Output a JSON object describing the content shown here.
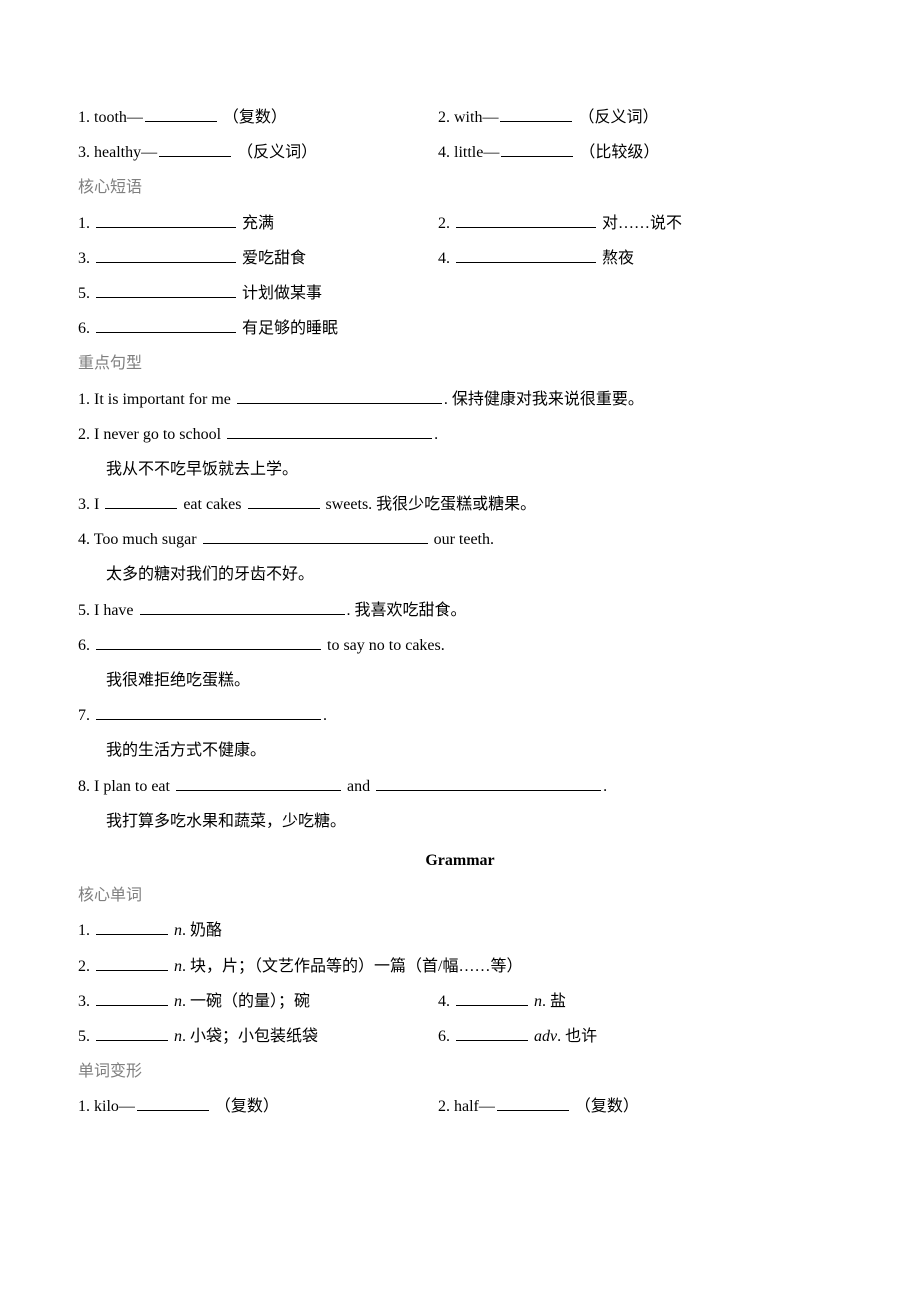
{
  "wordForms1": {
    "i1": {
      "num": "1.",
      "word": "tooth—",
      "note": "（复数）"
    },
    "i2": {
      "num": "2.",
      "word": "with—",
      "note": "（反义词）"
    },
    "i3": {
      "num": "3.",
      "word": "healthy—",
      "note": "（反义词）"
    },
    "i4": {
      "num": "4.",
      "word": "little—",
      "note": "（比较级）"
    }
  },
  "sectionPhrases": "核心短语",
  "phrases": {
    "p1": {
      "num": "1.",
      "cn": "充满"
    },
    "p2": {
      "num": "2.",
      "cn": "对……说不"
    },
    "p3": {
      "num": "3.",
      "cn": "爱吃甜食"
    },
    "p4": {
      "num": "4.",
      "cn": "熬夜"
    },
    "p5": {
      "num": "5.",
      "cn": "计划做某事"
    },
    "p6": {
      "num": "6.",
      "cn": "有足够的睡眠"
    }
  },
  "sectionSentences": "重点句型",
  "sentences": {
    "s1": {
      "num": "1.",
      "pre": "It is important for me",
      "post": ".",
      "cn": "保持健康对我来说很重要。"
    },
    "s2": {
      "num": "2.",
      "pre": "I never go to school",
      "post": ".",
      "cn": "我从不不吃早饭就去上学。"
    },
    "s3": {
      "num": "3.",
      "preA": "I",
      "mid": "eat cakes",
      "postA": "sweets.",
      "cn": "我很少吃蛋糕或糖果。"
    },
    "s4": {
      "num": "4.",
      "pre": "Too much sugar",
      "post": "our teeth.",
      "cn": "太多的糖对我们的牙齿不好。"
    },
    "s5": {
      "num": "5.",
      "pre": "I have",
      "post": ".",
      "cn": "我喜欢吃甜食。"
    },
    "s6": {
      "num": "6.",
      "post": "to say no to cakes.",
      "cn": "我很难拒绝吃蛋糕。"
    },
    "s7": {
      "num": "7.",
      "post": ".",
      "cn": "我的生活方式不健康。"
    },
    "s8": {
      "num": "8.",
      "pre": "I plan to eat",
      "mid": "and",
      "post": ".",
      "cn": "我打算多吃水果和蔬菜，少吃糖。"
    }
  },
  "grammarTitle": "Grammar",
  "sectionCoreWords": "核心单词",
  "coreWords": {
    "c1": {
      "num": "1.",
      "pos": "n",
      "dot": ".",
      "cn": "奶酪"
    },
    "c2": {
      "num": "2.",
      "pos": "n",
      "dot": ".",
      "cn": "块，片；（文艺作品等的）一篇（首/幅……等）"
    },
    "c3": {
      "num": "3.",
      "pos": "n",
      "dot": ".",
      "cn": "一碗（的量）；碗"
    },
    "c4": {
      "num": "4.",
      "pos": "n",
      "dot": ".",
      "cn": "盐"
    },
    "c5": {
      "num": "5.",
      "pos": "n",
      "dot": ".",
      "cn": "小袋；小包装纸袋"
    },
    "c6": {
      "num": "6.",
      "pos": "adv",
      "dot": ".",
      "cn": "也许"
    }
  },
  "sectionWordForms2": "单词变形",
  "wordForms2": {
    "w1": {
      "num": "1.",
      "word": "kilo—",
      "note": "（复数）"
    },
    "w2": {
      "num": "2.",
      "word": "half—",
      "note": "（复数）"
    }
  }
}
